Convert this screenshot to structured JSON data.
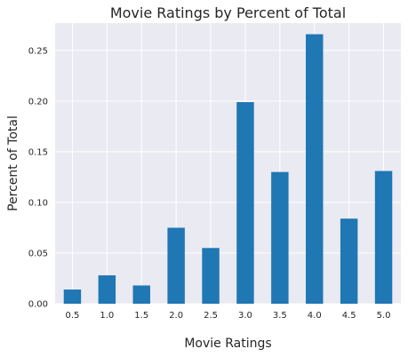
{
  "chart_data": {
    "type": "bar",
    "title": "Movie Ratings by Percent of Total",
    "xlabel": "Movie Ratings",
    "ylabel": "Percent of Total",
    "categories": [
      "0.5",
      "1.0",
      "1.5",
      "2.0",
      "2.5",
      "3.0",
      "3.5",
      "4.0",
      "4.5",
      "5.0"
    ],
    "values": [
      0.014,
      0.028,
      0.018,
      0.075,
      0.055,
      0.199,
      0.13,
      0.266,
      0.084,
      0.131
    ],
    "yticks": [
      "0.00",
      "0.05",
      "0.10",
      "0.15",
      "0.20",
      "0.25"
    ],
    "ylim": [
      0,
      0.277
    ],
    "grid": true,
    "colors": {
      "bar": "#1f77b4",
      "plot_background": "#eaeaf2",
      "grid": "#ffffff"
    }
  }
}
